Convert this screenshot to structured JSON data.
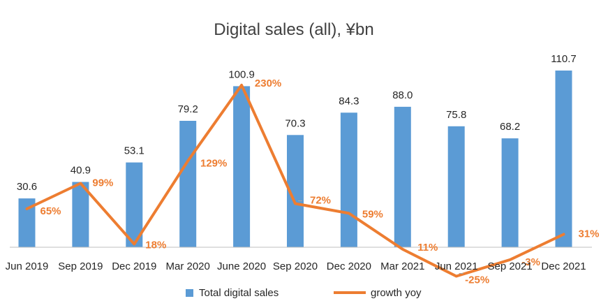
{
  "chart_data": {
    "type": "bar",
    "title": "Digital sales (all), ¥bn",
    "categories": [
      "Jun 2019",
      "Sep 2019",
      "Dec 2019",
      "Mar 2020",
      "June 2020",
      "Sep 2020",
      "Dec 2020",
      "Mar 2021",
      "Jun 2021",
      "Sep 2021",
      "Dec 2021"
    ],
    "series": [
      {
        "name": "Total digital sales",
        "type": "bar",
        "color": "#5B9BD5",
        "values": [
          30.6,
          40.9,
          53.1,
          79.2,
          100.9,
          70.3,
          84.3,
          88.0,
          75.8,
          68.2,
          110.7
        ],
        "labels": [
          "30.6",
          "40.9",
          "53.1",
          "79.2",
          "100.9",
          "70.3",
          "84.3",
          "88.0",
          "75.8",
          "68.2",
          "110.7"
        ]
      },
      {
        "name": "growth yoy",
        "type": "line",
        "color": "#ED7D31",
        "values": [
          65,
          99,
          18,
          129,
          230,
          72,
          59,
          11,
          -25,
          -3,
          31
        ],
        "labels": [
          "65%",
          "99%",
          "18%",
          "129%",
          "230%",
          "72%",
          "59%",
          "11%",
          "-25%",
          "-3%",
          "31%"
        ]
      }
    ],
    "ylim": [
      0,
      110.7
    ],
    "y2lim": [
      -45,
      270
    ],
    "legend": "bottom",
    "grid": false
  }
}
